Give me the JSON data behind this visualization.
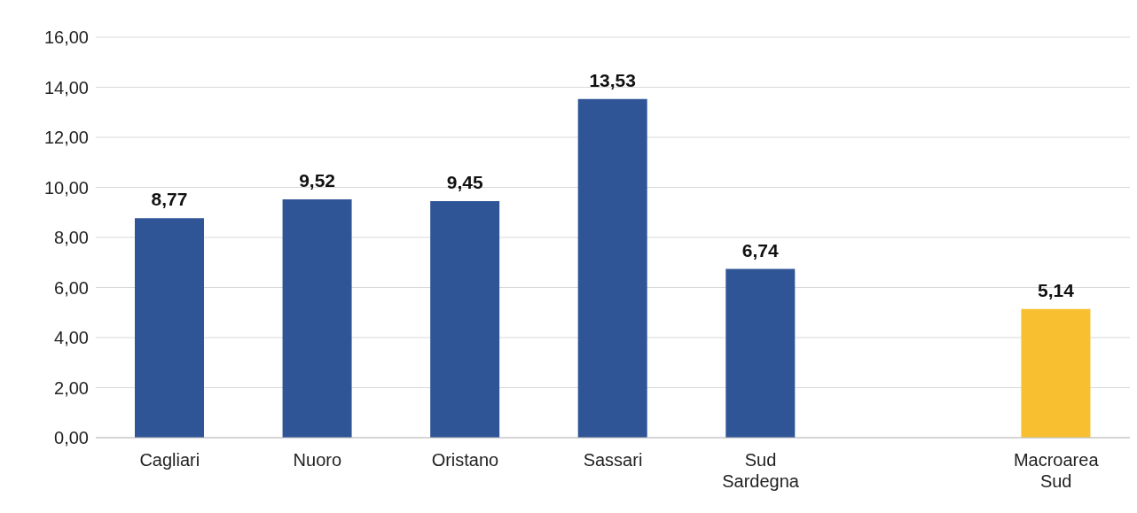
{
  "chart_data": {
    "type": "bar",
    "categories": [
      "Cagliari",
      "Nuoro",
      "Oristano",
      "Sassari",
      "Sud Sardegna",
      null,
      "Macroarea Sud"
    ],
    "values": [
      8.77,
      9.52,
      9.45,
      13.53,
      6.74,
      null,
      5.14
    ],
    "colors": [
      "#2f5597",
      "#2f5597",
      "#2f5597",
      "#2f5597",
      "#2f5597",
      "#2f5597",
      "#f8c030"
    ],
    "value_labels": [
      "8,77",
      "9,52",
      "9,45",
      "13,53",
      "6,74",
      null,
      "5,14"
    ],
    "ylim": [
      0,
      16
    ],
    "yticks": [
      {
        "value": 0,
        "label": "0,00"
      },
      {
        "value": 2,
        "label": "2,00"
      },
      {
        "value": 4,
        "label": "4,00"
      },
      {
        "value": 6,
        "label": "6,00"
      },
      {
        "value": 8,
        "label": "8,00"
      },
      {
        "value": 10,
        "label": "10,00"
      },
      {
        "value": 12,
        "label": "12,00"
      },
      {
        "value": 14,
        "label": "14,00"
      },
      {
        "value": 16,
        "label": "16,00"
      }
    ],
    "grid": "y"
  }
}
